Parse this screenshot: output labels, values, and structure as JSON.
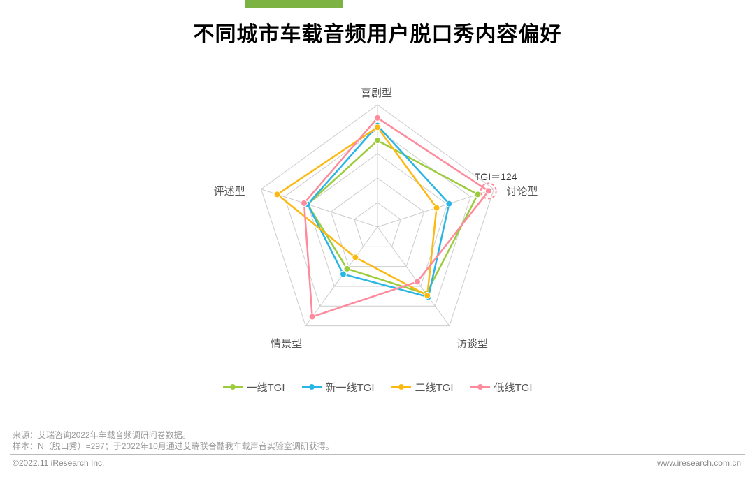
{
  "title": "不同城市车载音频用户脱口秀内容偏好",
  "radar": {
    "type": "radar",
    "axes": [
      "喜剧型",
      "讨论型",
      "访谈型",
      "情景型",
      "评述型"
    ],
    "max": 130,
    "rings": 5,
    "grid_stroke": "#cccccc",
    "grid_stroke_width": 1,
    "background": "#ffffff",
    "axis_label_fontsize": 15,
    "axis_label_color": "#555555",
    "line_width": 2.5,
    "marker_radius": 4.5,
    "series": [
      {
        "name": "一线TGI",
        "color": "#9ccc3c",
        "values": [
          92,
          112,
          88,
          55,
          78
        ]
      },
      {
        "name": "新一线TGI",
        "color": "#29b6e6",
        "values": [
          108,
          80,
          92,
          62,
          78
        ]
      },
      {
        "name": "二线TGI",
        "color": "#fdb913",
        "values": [
          106,
          66,
          90,
          40,
          112
        ]
      },
      {
        "name": "低线TGI",
        "color": "#ff8a9b",
        "values": [
          116,
          124,
          72,
          118,
          82
        ]
      }
    ],
    "callout": {
      "text": "TGI＝124",
      "axis_index": 1,
      "color": "#ff8a9b"
    }
  },
  "legend_items": [
    {
      "label": "一线TGI",
      "color": "#9ccc3c"
    },
    {
      "label": "新一线TGI",
      "color": "#29b6e6"
    },
    {
      "label": "二线TGI",
      "color": "#fdb913"
    },
    {
      "label": "低线TGI",
      "color": "#ff8a9b"
    }
  ],
  "source_line1": "来源：艾瑞咨询2022年车载音频调研问卷数据。",
  "source_line2": "样本：N（脱口秀）=297；于2022年10月通过艾瑞联合酷我车载声音实验室调研获得。",
  "copyright": "©2022.11 iResearch Inc.",
  "website": "www.iresearch.com.cn"
}
